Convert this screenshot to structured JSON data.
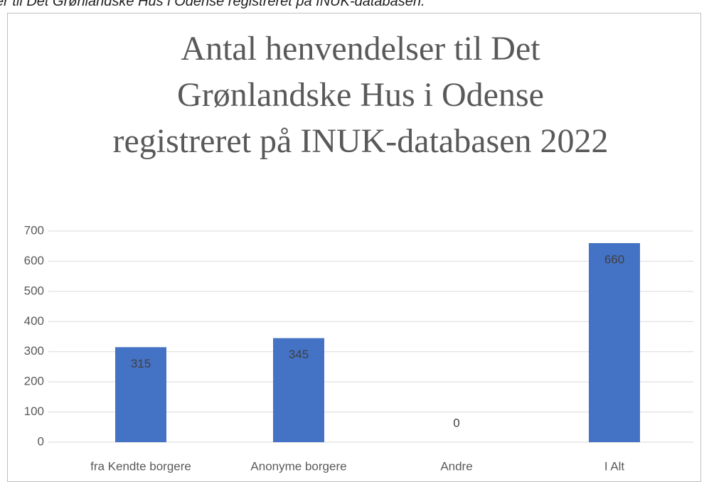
{
  "caption": "er til Det Grønlandske Hus i Odense registreret på INUK-databasen.",
  "chart_data": {
    "type": "bar",
    "title": "Antal henvendelser til Det Grønlandske Hus i Odense registreret på INUK-databasen 2022",
    "categories": [
      "fra Kendte borgere",
      "Anonyme borgere",
      "Andre",
      "I Alt"
    ],
    "values": [
      315,
      345,
      0,
      660
    ],
    "color": "#4472c4",
    "ylim": [
      0,
      700
    ],
    "yticks": [
      0,
      100,
      200,
      300,
      400,
      500,
      600,
      700
    ],
    "grid": true,
    "data_labels": true
  }
}
